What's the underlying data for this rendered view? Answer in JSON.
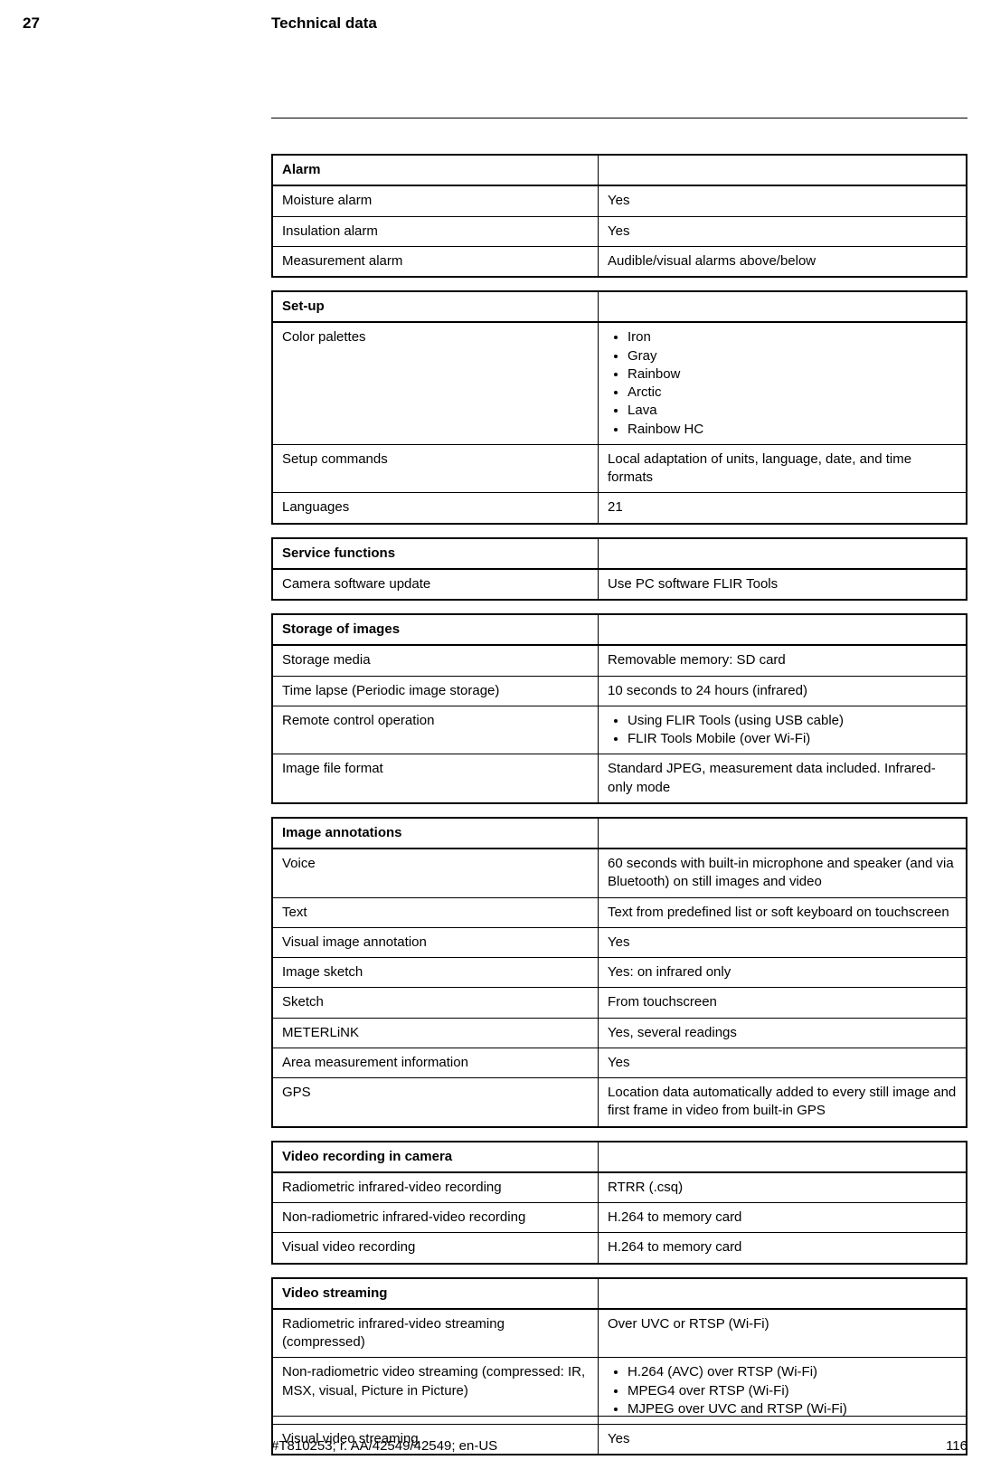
{
  "page": {
    "chapter_number": "27",
    "chapter_title": "Technical data",
    "footer_id": "#T810253; r. AA/42549/42549; en-US",
    "page_number": "116"
  },
  "groups": [
    {
      "header": "Alarm",
      "rows": [
        {
          "label": "Moisture alarm",
          "value": "Yes"
        },
        {
          "label": "Insulation alarm",
          "value": "Yes"
        },
        {
          "label": "Measurement alarm",
          "value": "Audible/visual alarms above/below"
        }
      ]
    },
    {
      "header": "Set-up",
      "rows": [
        {
          "label": "Color palettes",
          "bullets": [
            "Iron",
            "Gray",
            "Rainbow",
            "Arctic",
            "Lava",
            "Rainbow HC"
          ]
        },
        {
          "label": "Setup commands",
          "value": "Local adaptation of units, language, date, and time formats"
        },
        {
          "label": "Languages",
          "value": "21"
        }
      ]
    },
    {
      "header": "Service functions",
      "rows": [
        {
          "label": "Camera software update",
          "value": "Use PC software FLIR Tools"
        }
      ]
    },
    {
      "header": "Storage of images",
      "rows": [
        {
          "label": "Storage media",
          "value": "Removable memory: SD card"
        },
        {
          "label": "Time lapse (Periodic image storage)",
          "value": "10 seconds to 24 hours (infrared)"
        },
        {
          "label": "Remote control operation",
          "bullets": [
            "Using FLIR Tools (using USB cable)",
            "FLIR Tools Mobile (over Wi-Fi)"
          ]
        },
        {
          "label": "Image file format",
          "value": "Standard JPEG, measurement data included. Infrared-only mode"
        }
      ]
    },
    {
      "header": "Image annotations",
      "rows": [
        {
          "label": "Voice",
          "value": "60 seconds with built-in microphone and speaker (and via Bluetooth) on still images and video"
        },
        {
          "label": "Text",
          "value": "Text from predefined list or soft keyboard on touchscreen"
        },
        {
          "label": "Visual image annotation",
          "value": "Yes"
        },
        {
          "label": "Image sketch",
          "value": "Yes: on infrared only"
        },
        {
          "label": "Sketch",
          "value": "From touchscreen"
        },
        {
          "label": "METERLiNK",
          "value": "Yes, several readings"
        },
        {
          "label": "Area measurement information",
          "value": "Yes"
        },
        {
          "label": "GPS",
          "value": "Location data automatically added to every still image and first frame in video from built-in GPS"
        }
      ]
    },
    {
      "header": "Video recording in camera",
      "rows": [
        {
          "label": "Radiometric infrared-video recording",
          "value": "RTRR (.csq)"
        },
        {
          "label": "Non-radiometric infrared-video recording",
          "value": "H.264 to memory card"
        },
        {
          "label": "Visual video recording",
          "value": "H.264 to memory card"
        }
      ]
    },
    {
      "header": "Video streaming",
      "rows": [
        {
          "label": "Radiometric infrared-video streaming (compressed)",
          "value": "Over UVC or RTSP (Wi-Fi)"
        },
        {
          "label": "Non-radiometric video streaming (compressed: IR, MSX, visual, Picture in Picture)",
          "bullets": [
            "H.264 (AVC) over RTSP (Wi-Fi)",
            "MPEG4 over RTSP (Wi-Fi)",
            "MJPEG over UVC and RTSP (Wi-Fi)"
          ]
        },
        {
          "label": "Visual video streaming",
          "value": "Yes"
        }
      ]
    }
  ]
}
